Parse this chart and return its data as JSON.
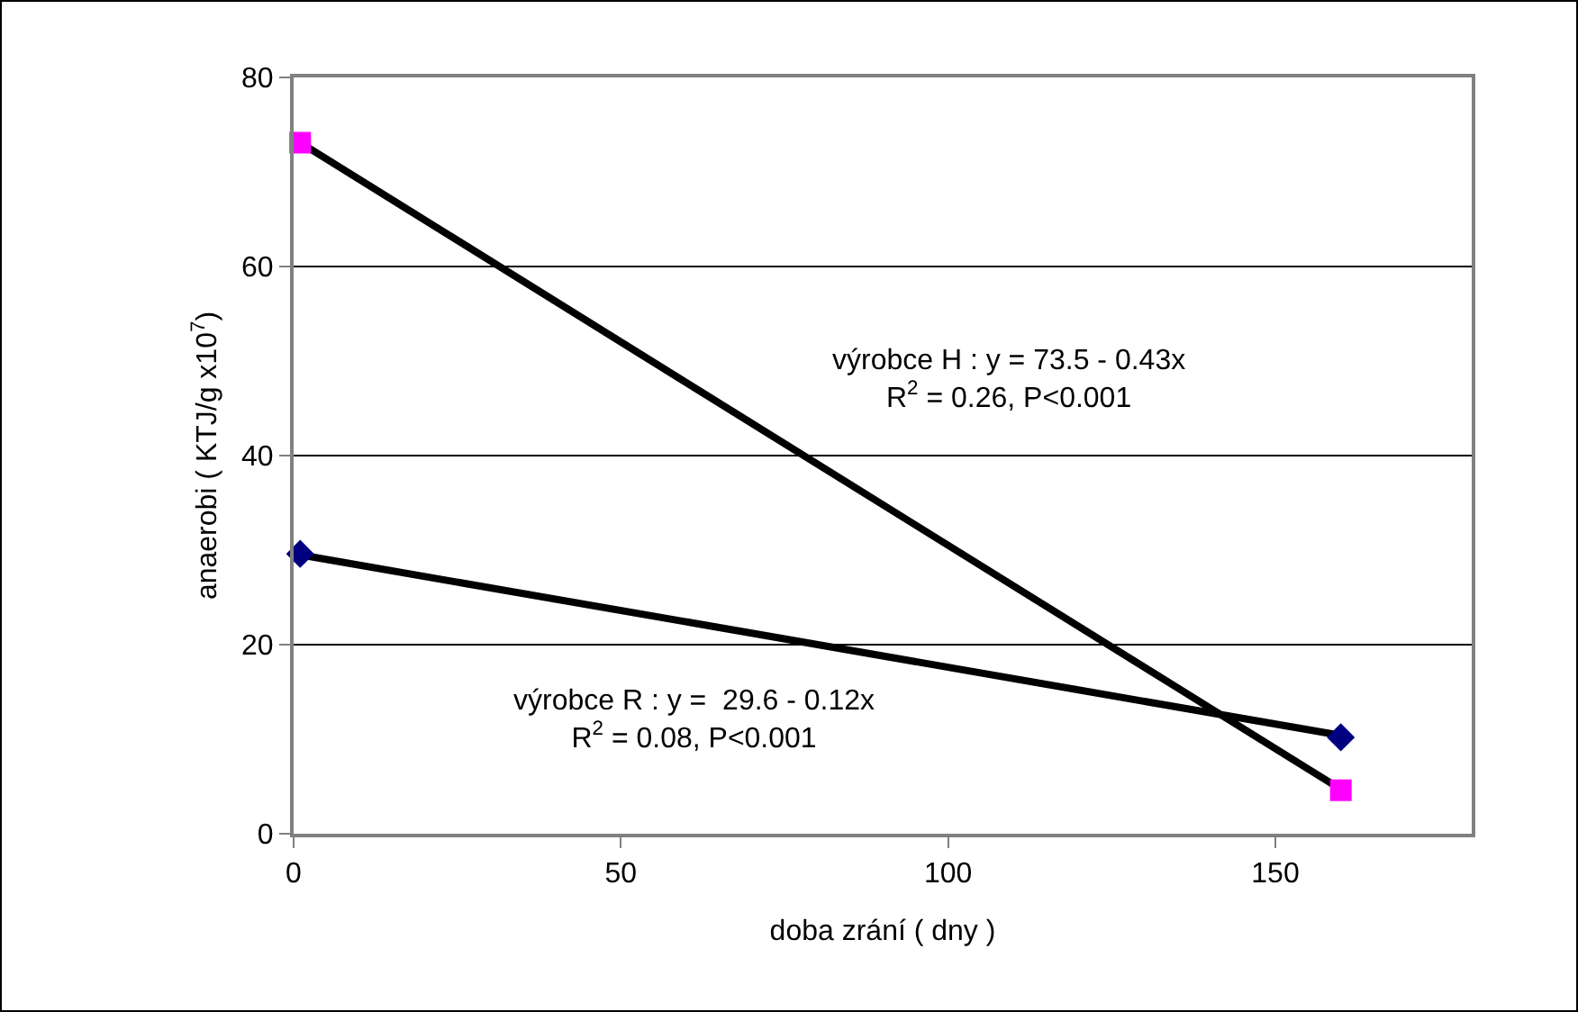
{
  "chart_data": {
    "type": "scatter",
    "xlabel": "doba zrání ( dny )",
    "ylabel": "anaerobi ( KTJ/g x10$^{7}$)",
    "xlim": [
      0,
      180
    ],
    "xticks": [
      0,
      50,
      100,
      150
    ],
    "ylim": [
      0,
      80
    ],
    "yticks": [
      0,
      20,
      40,
      60,
      80
    ],
    "grid": "y",
    "x": [
      1,
      160
    ],
    "series": [
      {
        "type": "line",
        "color": "#000000",
        "values": [
          73.1,
          4.7
        ],
        "marker": "none",
        "line_style": "solid"
      },
      {
        "type": "line",
        "color": "#000000",
        "values": [
          29.5,
          10.4
        ],
        "marker": "none",
        "line_style": "solid"
      },
      {
        "color": "#ff00ff",
        "values": [
          73.1,
          4.6
        ],
        "marker": "square"
      },
      {
        "color": "#000080",
        "values": [
          29.6,
          10.2
        ],
        "marker": "diamond"
      }
    ],
    "annotations": [
      "výrobce H : y = 73.5 - 0.43x\nR$^{2}$ = 0.26, P<0.001",
      "výrobce R : y =  29.6 - 0.12x\nR$^{2}$ = 0.08, P<0.001"
    ]
  }
}
